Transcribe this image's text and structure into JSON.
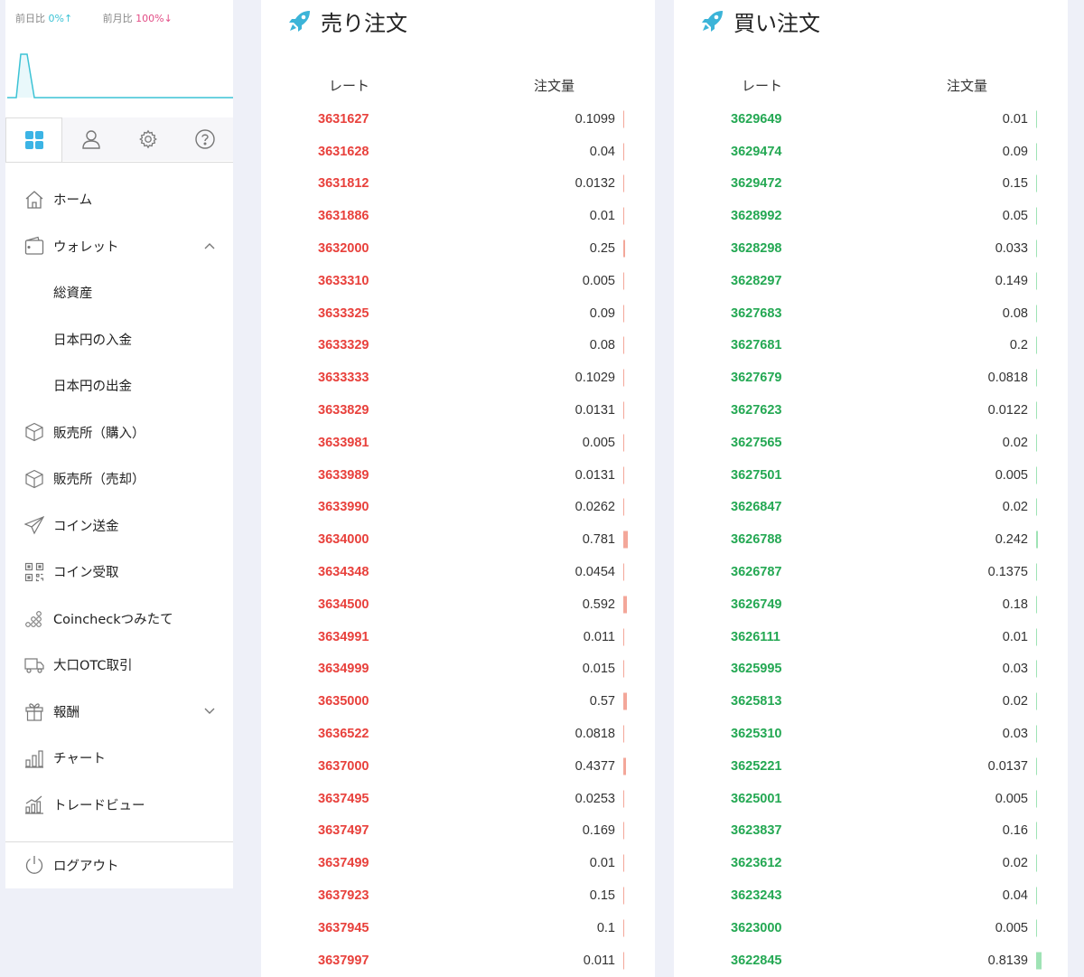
{
  "sidebar": {
    "stats": {
      "day_label": "前日比",
      "day_value": "0%",
      "day_arrow": "↑",
      "month_label": "前月比",
      "month_value": "100%",
      "month_arrow": "↓"
    },
    "tabs": [
      {
        "icon": "grid-icon",
        "active": true
      },
      {
        "icon": "user-icon",
        "active": false
      },
      {
        "icon": "gear-icon",
        "active": false
      },
      {
        "icon": "help-icon",
        "active": false
      }
    ],
    "nav": {
      "home": "ホーム",
      "wallet": "ウォレット",
      "total_assets": "総資産",
      "jpy_deposit": "日本円の入金",
      "jpy_withdraw": "日本円の出金",
      "shop_buy": "販売所（購入）",
      "shop_sell": "販売所（売却）",
      "coin_send": "コイン送金",
      "coin_receive": "コイン受取",
      "tsumitate": "Coincheckつみたて",
      "otc": "大口OTC取引",
      "rewards": "報酬",
      "chart": "チャート",
      "tradeview": "トレードビュー",
      "logout": "ログアウト"
    }
  },
  "colors": {
    "sell": "#e8413c",
    "buy": "#24a853",
    "sell_bar": "#f3a79a",
    "buy_bar": "#9fe3b5",
    "accent": "#3cc3d5"
  },
  "sell_orders": {
    "title": "売り注文",
    "rate_header": "レート",
    "amount_header": "注文量",
    "rows": [
      {
        "rate": "3631627",
        "amount": "0.1099"
      },
      {
        "rate": "3631628",
        "amount": "0.04"
      },
      {
        "rate": "3631812",
        "amount": "0.0132"
      },
      {
        "rate": "3631886",
        "amount": "0.01"
      },
      {
        "rate": "3632000",
        "amount": "0.25"
      },
      {
        "rate": "3633310",
        "amount": "0.005"
      },
      {
        "rate": "3633325",
        "amount": "0.09"
      },
      {
        "rate": "3633329",
        "amount": "0.08"
      },
      {
        "rate": "3633333",
        "amount": "0.1029"
      },
      {
        "rate": "3633829",
        "amount": "0.0131"
      },
      {
        "rate": "3633981",
        "amount": "0.005"
      },
      {
        "rate": "3633989",
        "amount": "0.0131"
      },
      {
        "rate": "3633990",
        "amount": "0.0262"
      },
      {
        "rate": "3634000",
        "amount": "0.781"
      },
      {
        "rate": "3634348",
        "amount": "0.0454"
      },
      {
        "rate": "3634500",
        "amount": "0.592"
      },
      {
        "rate": "3634991",
        "amount": "0.011"
      },
      {
        "rate": "3634999",
        "amount": "0.015"
      },
      {
        "rate": "3635000",
        "amount": "0.57"
      },
      {
        "rate": "3636522",
        "amount": "0.0818"
      },
      {
        "rate": "3637000",
        "amount": "0.4377"
      },
      {
        "rate": "3637495",
        "amount": "0.0253"
      },
      {
        "rate": "3637497",
        "amount": "0.169"
      },
      {
        "rate": "3637499",
        "amount": "0.01"
      },
      {
        "rate": "3637923",
        "amount": "0.15"
      },
      {
        "rate": "3637945",
        "amount": "0.1"
      },
      {
        "rate": "3637997",
        "amount": "0.011"
      }
    ]
  },
  "buy_orders": {
    "title": "買い注文",
    "rate_header": "レート",
    "amount_header": "注文量",
    "rows": [
      {
        "rate": "3629649",
        "amount": "0.01"
      },
      {
        "rate": "3629474",
        "amount": "0.09"
      },
      {
        "rate": "3629472",
        "amount": "0.15"
      },
      {
        "rate": "3628992",
        "amount": "0.05"
      },
      {
        "rate": "3628298",
        "amount": "0.033"
      },
      {
        "rate": "3628297",
        "amount": "0.149"
      },
      {
        "rate": "3627683",
        "amount": "0.08"
      },
      {
        "rate": "3627681",
        "amount": "0.2"
      },
      {
        "rate": "3627679",
        "amount": "0.0818"
      },
      {
        "rate": "3627623",
        "amount": "0.0122"
      },
      {
        "rate": "3627565",
        "amount": "0.02"
      },
      {
        "rate": "3627501",
        "amount": "0.005"
      },
      {
        "rate": "3626847",
        "amount": "0.02"
      },
      {
        "rate": "3626788",
        "amount": "0.242"
      },
      {
        "rate": "3626787",
        "amount": "0.1375"
      },
      {
        "rate": "3626749",
        "amount": "0.18"
      },
      {
        "rate": "3626111",
        "amount": "0.01"
      },
      {
        "rate": "3625995",
        "amount": "0.03"
      },
      {
        "rate": "3625813",
        "amount": "0.02"
      },
      {
        "rate": "3625310",
        "amount": "0.03"
      },
      {
        "rate": "3625221",
        "amount": "0.0137"
      },
      {
        "rate": "3625001",
        "amount": "0.005"
      },
      {
        "rate": "3623837",
        "amount": "0.16"
      },
      {
        "rate": "3623612",
        "amount": "0.02"
      },
      {
        "rate": "3623243",
        "amount": "0.04"
      },
      {
        "rate": "3623000",
        "amount": "0.005"
      },
      {
        "rate": "3622845",
        "amount": "0.8139"
      }
    ]
  }
}
